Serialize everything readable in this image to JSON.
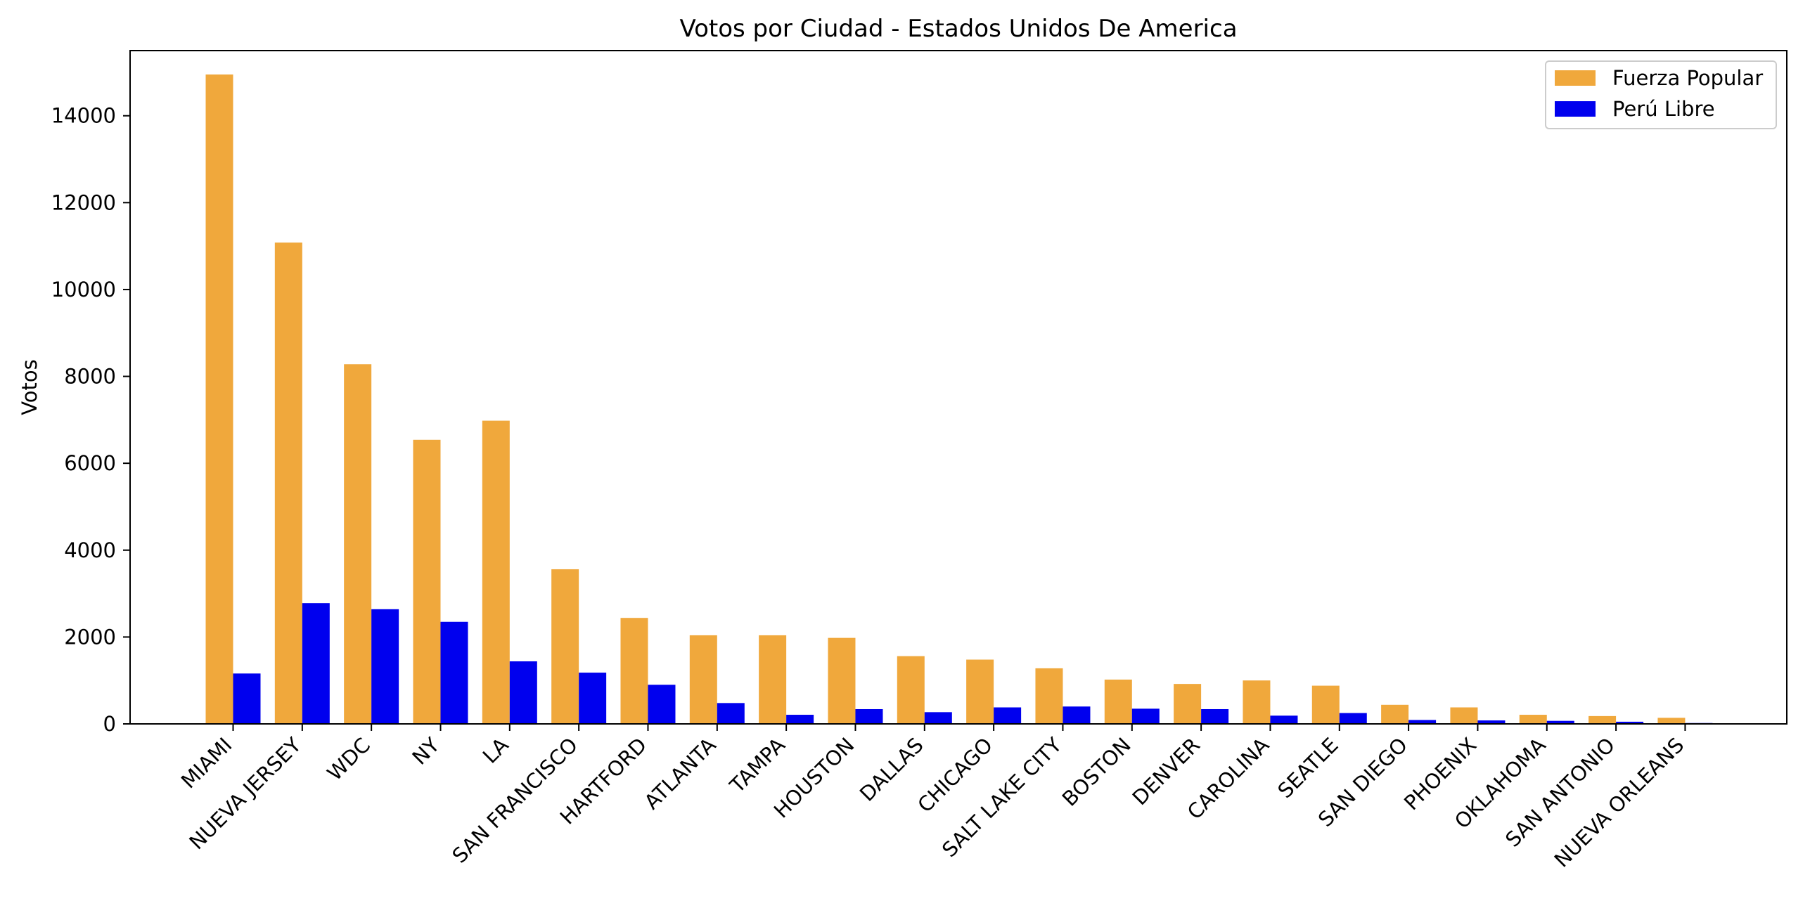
{
  "chart_data": {
    "type": "bar",
    "title": "Votos por Ciudad - Estados Unidos De America",
    "xlabel": "",
    "ylabel": "Votos",
    "ylim": [
      0,
      15500
    ],
    "yticks": [
      0,
      2000,
      4000,
      6000,
      8000,
      10000,
      12000,
      14000
    ],
    "grid": false,
    "legend_position": "top-right",
    "categories": [
      "MIAMI",
      "NUEVA JERSEY",
      "WDC",
      "NY",
      "LA",
      "SAN FRANCISCO",
      "HARTFORD",
      "ATLANTA",
      "TAMPA",
      "HOUSTON",
      "DALLAS",
      "CHICAGO",
      "SALT LAKE CITY",
      "BOSTON",
      "DENVER",
      "CAROLINA",
      "SEATLE",
      "SAN DIEGO",
      "PHOENIX",
      "OKLAHOMA",
      "SAN ANTONIO",
      "NUEVA ORLEANS"
    ],
    "series": [
      {
        "name": "Fuerza Popular",
        "color": "#f0a83c",
        "values": [
          14950,
          11080,
          8280,
          6540,
          6980,
          3560,
          2440,
          2040,
          2040,
          1980,
          1560,
          1480,
          1280,
          1020,
          920,
          1000,
          880,
          440,
          380,
          210,
          180,
          140
        ]
      },
      {
        "name": "Perú Libre",
        "color": "#0000ee",
        "values": [
          1160,
          2780,
          2640,
          2350,
          1440,
          1180,
          900,
          480,
          210,
          340,
          270,
          380,
          400,
          350,
          340,
          190,
          250,
          90,
          80,
          70,
          50,
          20
        ]
      }
    ]
  }
}
